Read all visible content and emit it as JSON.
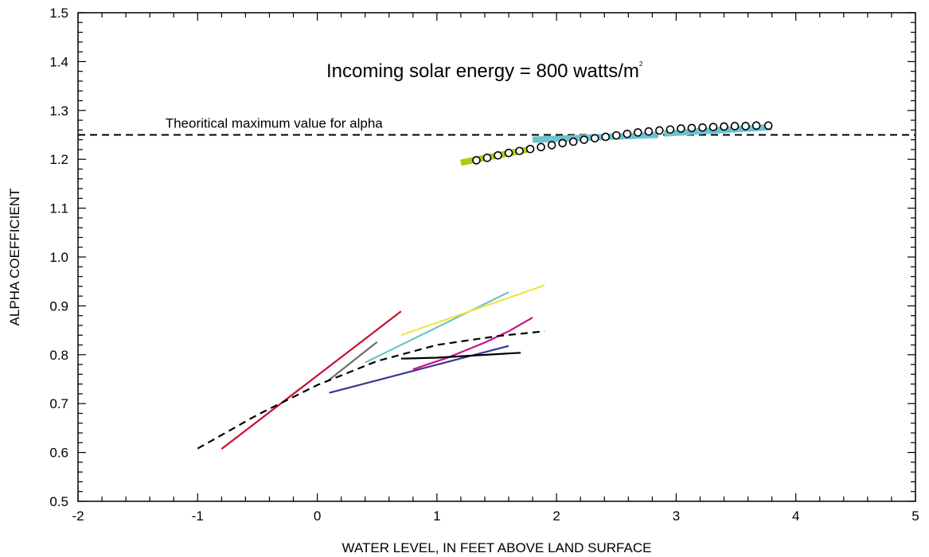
{
  "chart_data": {
    "type": "line",
    "title": "Incoming solar energy = 800 watts/m",
    "title_superscript": "2",
    "xlabel": "WATER LEVEL, IN FEET ABOVE LAND SURFACE",
    "ylabel": "ALPHA COEFFICIENT",
    "xlim": [
      -2,
      5
    ],
    "ylim": [
      0.5,
      1.5
    ],
    "xticks": [
      "-2",
      "-1",
      "0",
      "1",
      "2",
      "3",
      "4",
      "5"
    ],
    "yticks": [
      "0.5",
      "0.6",
      "0.7",
      "0.8",
      "0.9",
      "1.0",
      "1.1",
      "1.2",
      "1.3",
      "1.4",
      "1.5"
    ],
    "grid": false,
    "annotations": [
      {
        "text": "Theoritical maximum value for alpha",
        "x": -1.27,
        "y": 1.265
      }
    ],
    "reference_lines": [
      {
        "y": 1.25,
        "style": "dashed",
        "color": "#000000"
      }
    ],
    "series": [
      {
        "points": [
          [
            -0.8,
            0.607
          ],
          [
            0.7,
            0.889
          ]
        ],
        "color": "#c8102e",
        "style": "solid"
      },
      {
        "points": [
          [
            0.08,
            0.745
          ],
          [
            0.5,
            0.826
          ]
        ],
        "color": "#6e6e6e",
        "style": "solid"
      },
      {
        "points": [
          [
            0.4,
            0.784
          ],
          [
            1.6,
            0.928
          ]
        ],
        "color": "#6cc3c8",
        "style": "solid"
      },
      {
        "points": [
          [
            0.7,
            0.84
          ],
          [
            1.9,
            0.942
          ]
        ],
        "color": "#f0e443",
        "style": "solid"
      },
      {
        "points": [
          [
            0.8,
            0.77
          ],
          [
            1.1,
            0.795
          ],
          [
            1.4,
            0.825
          ],
          [
            1.6,
            0.848
          ],
          [
            1.8,
            0.876
          ]
        ],
        "color": "#c8138a",
        "style": "solid"
      },
      {
        "points": [
          [
            0.1,
            0.722
          ],
          [
            1.6,
            0.818
          ]
        ],
        "color": "#3a3595",
        "style": "solid"
      },
      {
        "points": [
          [
            0.7,
            0.792
          ],
          [
            1.0,
            0.794
          ],
          [
            1.7,
            0.804
          ]
        ],
        "color": "#000000",
        "style": "solid"
      },
      {
        "points": [
          [
            -1.0,
            0.608
          ],
          [
            -0.5,
            0.677
          ],
          [
            0.0,
            0.738
          ],
          [
            0.5,
            0.787
          ],
          [
            1.0,
            0.82
          ],
          [
            1.5,
            0.838
          ],
          [
            1.9,
            0.848
          ]
        ],
        "color": "#000000",
        "style": "dashed"
      },
      {
        "points": [
          [
            1.2,
            1.193
          ],
          [
            1.8,
            1.222
          ]
        ],
        "color": "#a5cf1b",
        "style": "band"
      },
      {
        "points": [
          [
            1.8,
            1.24
          ],
          [
            2.85,
            1.25
          ]
        ],
        "color": "#6cc3d2",
        "style": "band"
      },
      {
        "points": [
          [
            2.9,
            1.253
          ],
          [
            3.8,
            1.266
          ]
        ],
        "color": "#6cc3d2",
        "style": "band"
      },
      {
        "points": [
          [
            1.33,
            1.198
          ],
          [
            1.42,
            1.203
          ],
          [
            1.51,
            1.208
          ],
          [
            1.6,
            1.213
          ],
          [
            1.69,
            1.217
          ],
          [
            1.78,
            1.221
          ],
          [
            1.87,
            1.225
          ],
          [
            1.96,
            1.229
          ],
          [
            2.05,
            1.233
          ],
          [
            2.14,
            1.236
          ],
          [
            2.23,
            1.24
          ],
          [
            2.32,
            1.243
          ],
          [
            2.41,
            1.246
          ],
          [
            2.5,
            1.249
          ],
          [
            2.59,
            1.252
          ],
          [
            2.68,
            1.255
          ],
          [
            2.77,
            1.257
          ],
          [
            2.86,
            1.259
          ],
          [
            2.95,
            1.261
          ],
          [
            3.04,
            1.263
          ],
          [
            3.13,
            1.264
          ],
          [
            3.22,
            1.265
          ],
          [
            3.31,
            1.266
          ],
          [
            3.4,
            1.267
          ],
          [
            3.49,
            1.268
          ],
          [
            3.58,
            1.268
          ],
          [
            3.67,
            1.269
          ],
          [
            3.77,
            1.269
          ]
        ],
        "color": "#000000",
        "style": "markers"
      }
    ]
  }
}
